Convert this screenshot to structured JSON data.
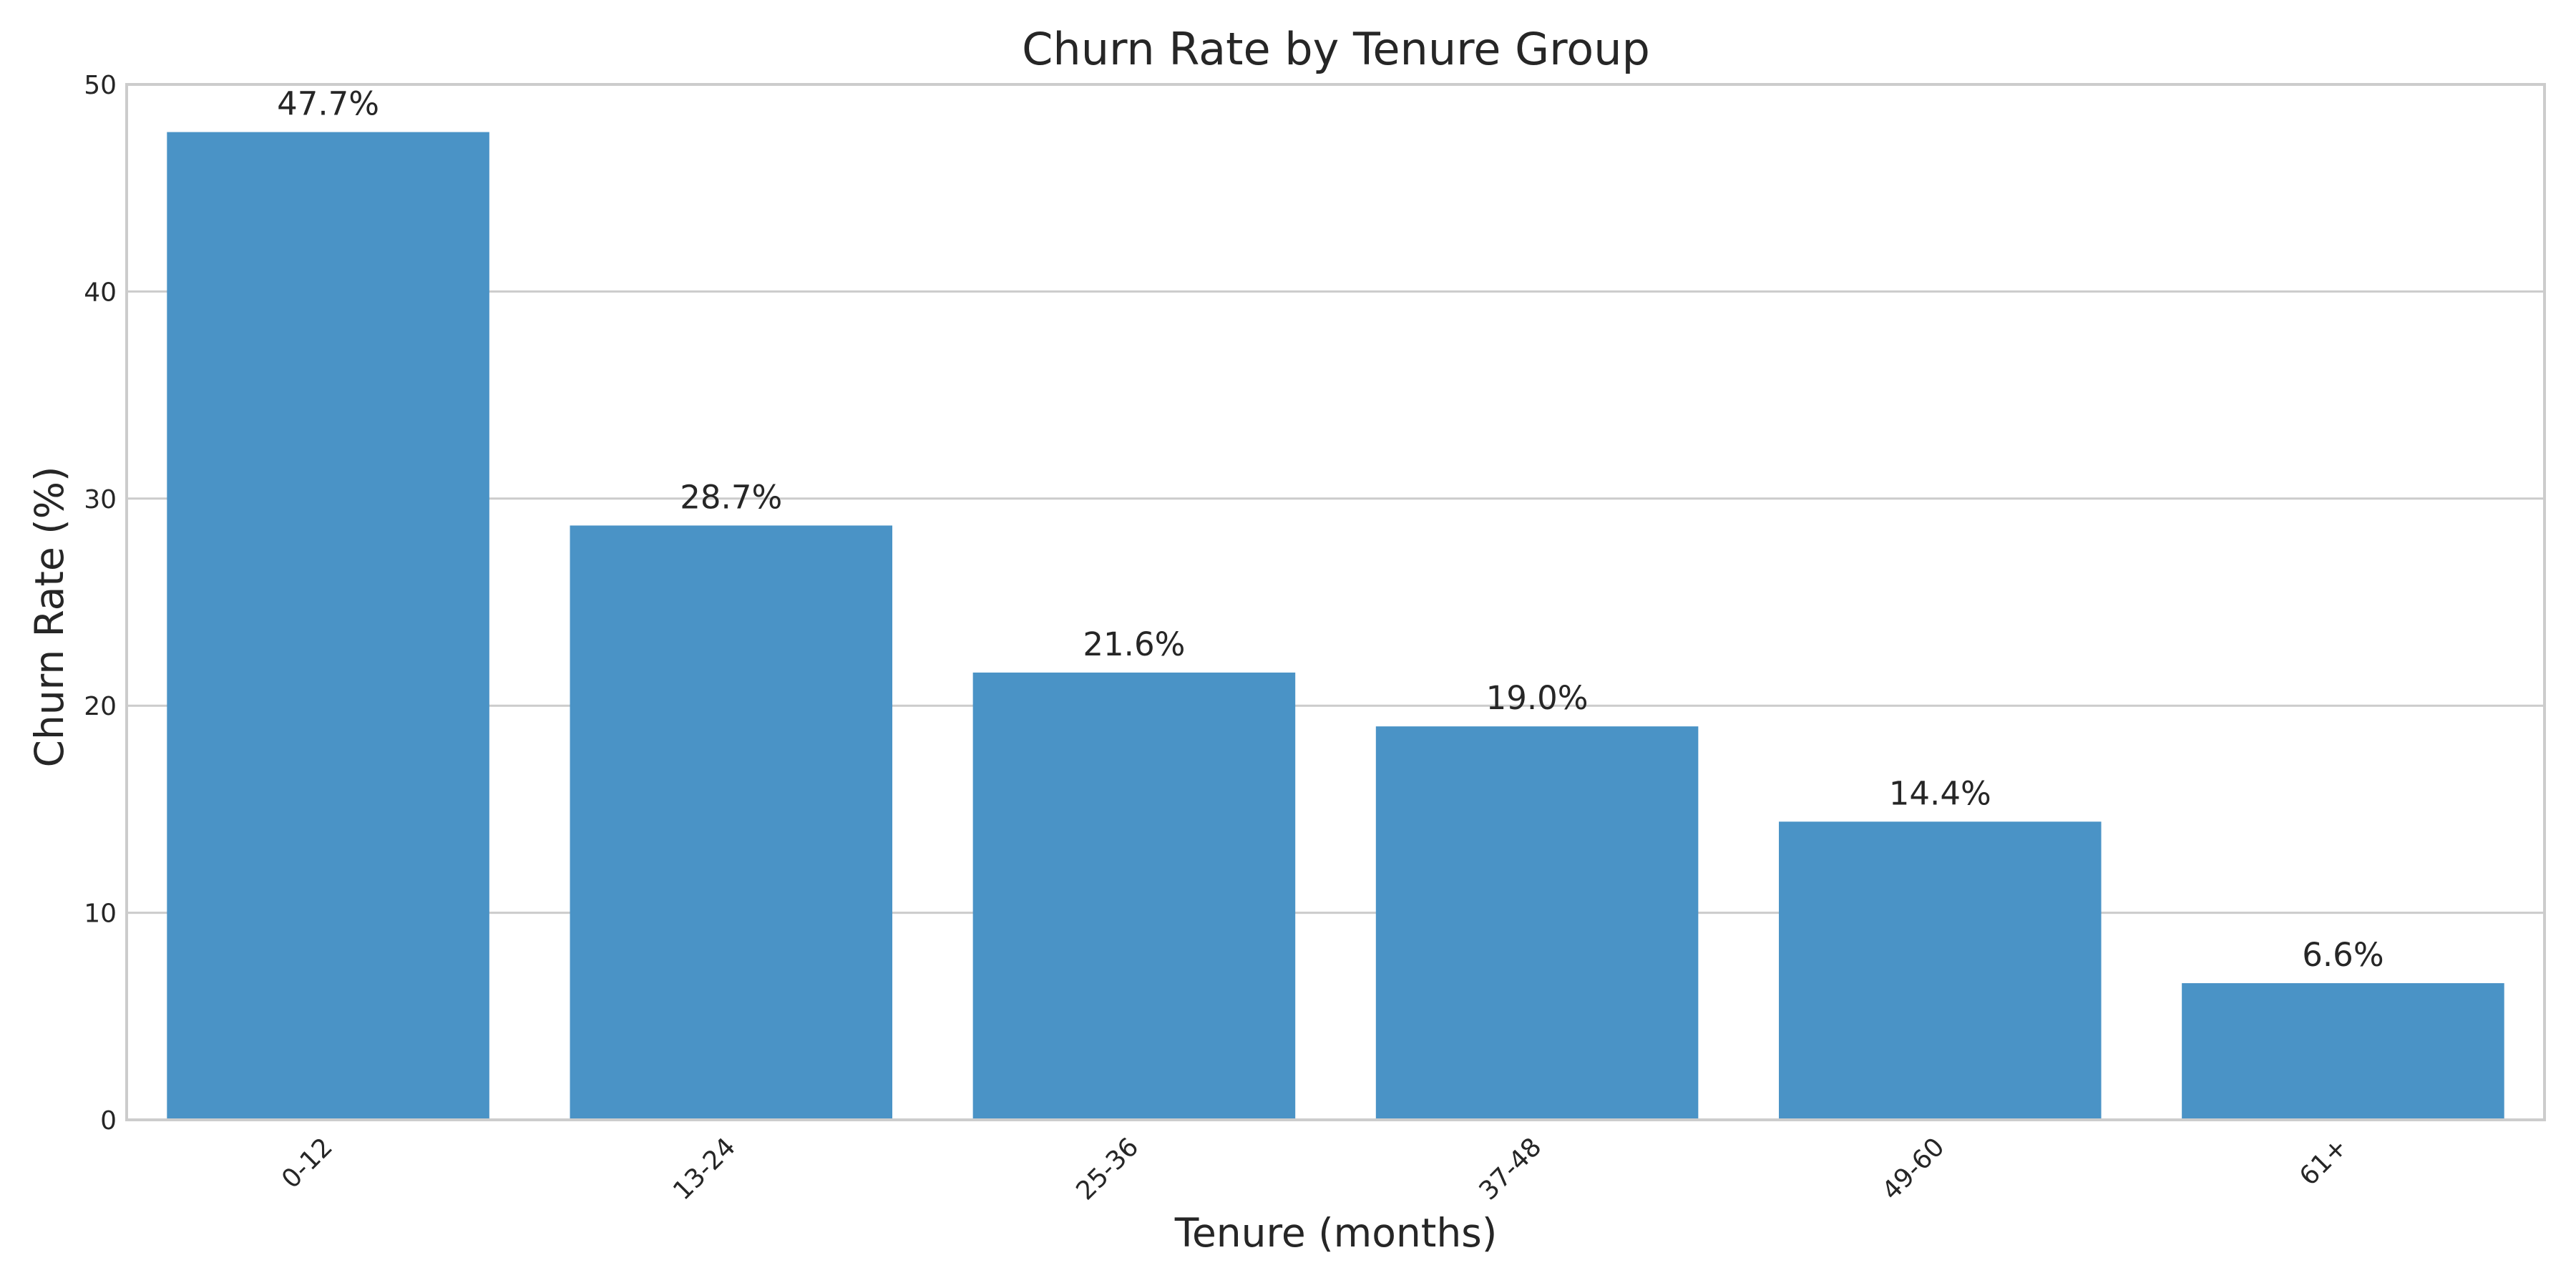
{
  "chart_data": {
    "type": "bar",
    "title": "Churn Rate by Tenure Group",
    "xlabel": "Tenure (months)",
    "ylabel": "Churn Rate (%)",
    "categories": [
      "0-12",
      "13-24",
      "25-36",
      "37-48",
      "49-60",
      "61+"
    ],
    "values": [
      47.7,
      28.7,
      21.6,
      19.0,
      14.4,
      6.6
    ],
    "data_labels": [
      "47.7%",
      "28.7%",
      "21.6%",
      "19.0%",
      "14.4%",
      "6.6%"
    ],
    "ylim": [
      0,
      50
    ],
    "yticks": [
      "0",
      "10",
      "20",
      "30",
      "40",
      "50"
    ],
    "ytick_values": [
      0,
      10,
      20,
      30,
      40,
      50
    ],
    "grid": "horizontal",
    "legend": "none",
    "x_tick_rotation": "45 degrees",
    "bar_color": "#4a93c6",
    "grid_color": "#cccccc",
    "text_color": "#262626"
  }
}
